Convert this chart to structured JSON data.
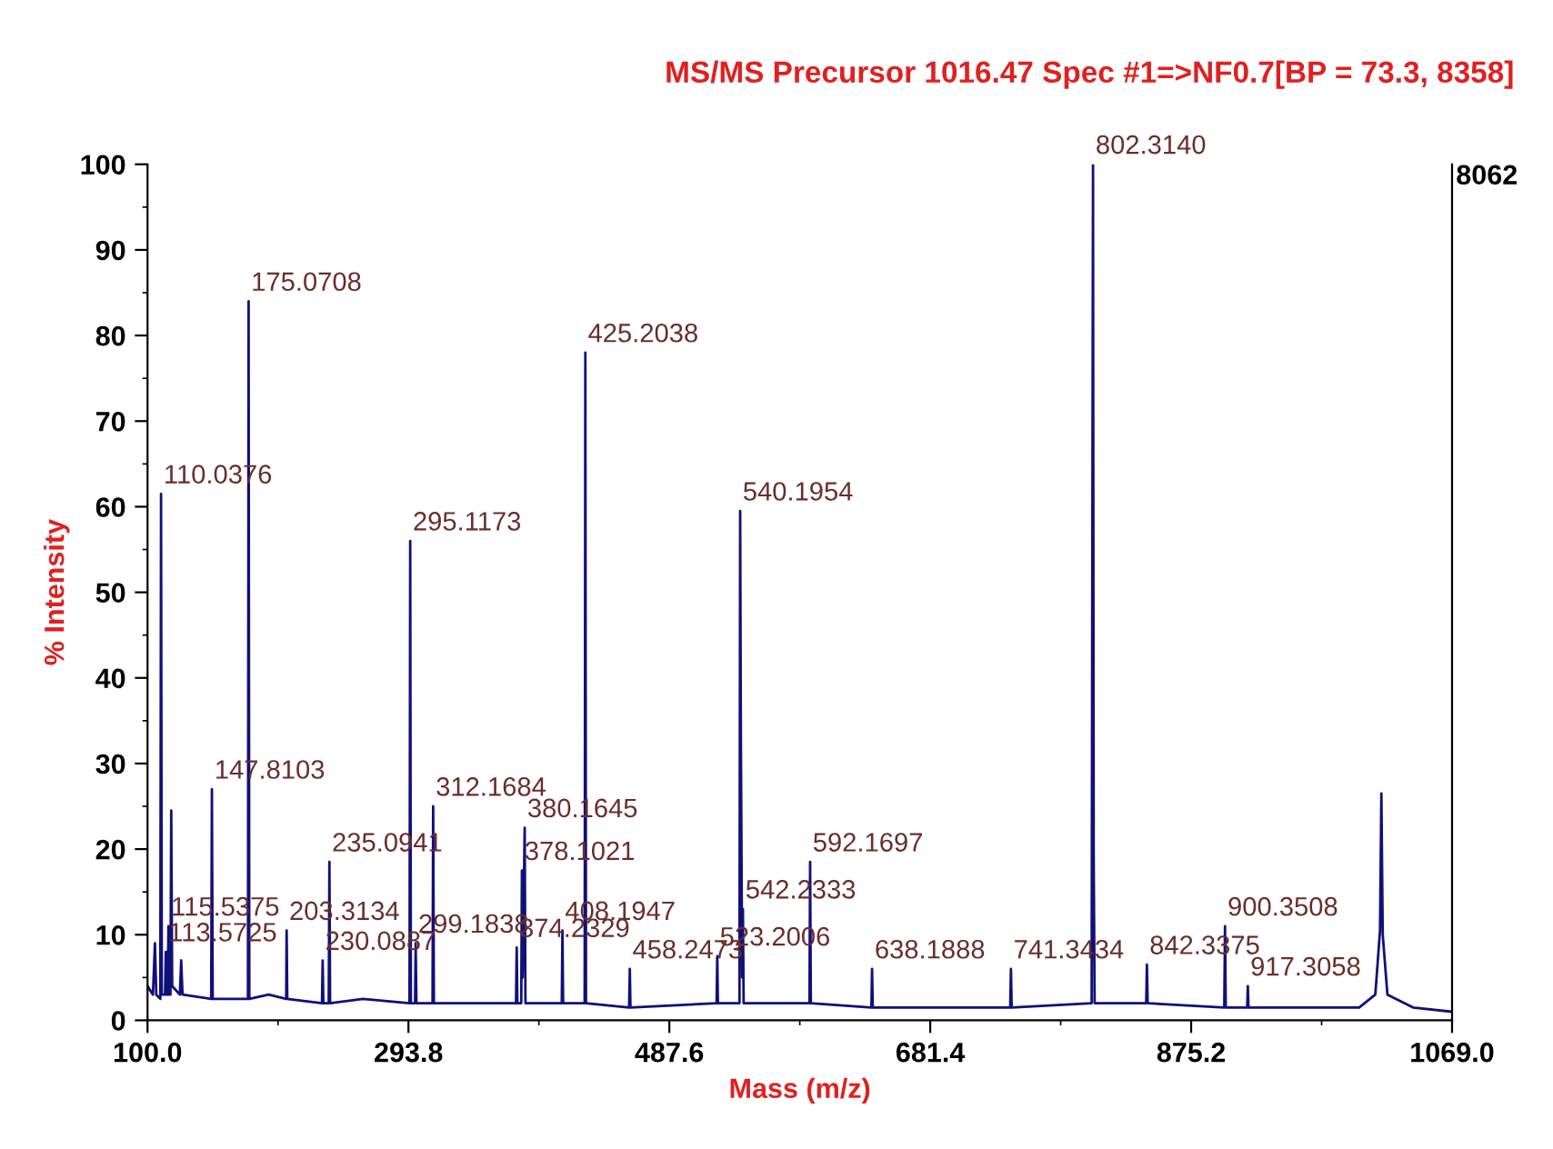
{
  "chart_data": {
    "type": "line",
    "title": "MS/MS Precursor 1016.47 Spec #1=>NF0.7[BP = 73.3, 8358]",
    "xlabel": "Mass (m/z)",
    "ylabel": "% Intensity",
    "x": [
      100,
      104,
      105.5,
      106.5,
      109.5,
      110.0376,
      110.6,
      113.0,
      113.5725,
      114.2,
      115.0,
      115.5375,
      116.2,
      117.0,
      117.6,
      118.3,
      124,
      125,
      126,
      147.3,
      147.8103,
      148.4,
      174.6,
      175.0708,
      175.6,
      190,
      203.0,
      203.3134,
      203.8,
      229.6,
      230.0887,
      230.6,
      234.6,
      235.0941,
      235.6,
      260,
      294.6,
      295.1173,
      295.6,
      298.7,
      299.1838,
      299.7,
      311.7,
      312.1684,
      312.7,
      340,
      373.7,
      374.2329,
      374.7,
      377.6,
      378.1021,
      378.6,
      380.1645,
      380.7,
      407.7,
      408.1947,
      408.7,
      424.7,
      425.2038,
      425.7,
      457.7,
      458.2473,
      458.7,
      522.7,
      523.2006,
      523.7,
      539.7,
      540.1954,
      540.7,
      541.7,
      542.2333,
      542.8,
      591.7,
      592.1697,
      592.7,
      637.7,
      638.1888,
      638.7,
      700,
      740.8,
      741.3434,
      741.9,
      801.3,
      801.8,
      802.314,
      802.8,
      803.5,
      841.8,
      842.3375,
      842.9,
      899.8,
      900.3508,
      900.9,
      916.8,
      917.3058,
      917.8,
      1000,
      1012,
      1015.5,
      1016.5,
      1017.5,
      1021,
      1040,
      1069
    ],
    "series": [
      {
        "color": "#10107a",
        "values": [
          4,
          3,
          9,
          3,
          2.5,
          61.5,
          3,
          3,
          8,
          3,
          3,
          11,
          3,
          3,
          24.5,
          4,
          3,
          7,
          3,
          2.5,
          27,
          2.5,
          2.5,
          84,
          2.5,
          3,
          2.5,
          10.5,
          2.5,
          2,
          7,
          2,
          2,
          18.5,
          2,
          2.5,
          2,
          56,
          2,
          2,
          9,
          2,
          2,
          25,
          2,
          2,
          2,
          8.5,
          2,
          2,
          17.5,
          5,
          22.5,
          2,
          2,
          10.5,
          2,
          2,
          78,
          2,
          1.5,
          6,
          1.5,
          2,
          7.5,
          2,
          2,
          59.5,
          34,
          5,
          13,
          2,
          2,
          18.5,
          2,
          1.5,
          6,
          1.5,
          1.5,
          1.5,
          6,
          1.5,
          2,
          55,
          100,
          19,
          2,
          2,
          6.5,
          2,
          1.5,
          11,
          1.5,
          1.5,
          4,
          1.5,
          1.5,
          3,
          10.5,
          26.5,
          10,
          3,
          1.5,
          1
        ]
      }
    ],
    "xlim": [
      100,
      1069
    ],
    "xticks": [
      {
        "value": 100,
        "label": "100.0"
      },
      {
        "value": 293.8,
        "label": "293.8"
      },
      {
        "value": 487.6,
        "label": "487.6"
      },
      {
        "value": 681.4,
        "label": "681.4"
      },
      {
        "value": 875.2,
        "label": "875.2"
      },
      {
        "value": 1069,
        "label": "1069.0"
      }
    ],
    "ylim": [
      0,
      100
    ],
    "yticks": [
      0,
      10,
      20,
      30,
      40,
      50,
      60,
      70,
      80,
      90,
      100
    ],
    "grid": false,
    "legend": false,
    "marker": "none",
    "line_style": "solid",
    "annotations": [
      {
        "text": "110.0376",
        "x": 110.0376,
        "y": 61.5
      },
      {
        "text": "113.5725",
        "x": 113.5725,
        "y": 8
      },
      {
        "text": "115.5375",
        "x": 115.5375,
        "y": 11
      },
      {
        "text": "147.8103",
        "x": 147.8103,
        "y": 27
      },
      {
        "text": "175.0708",
        "x": 175.0708,
        "y": 84
      },
      {
        "text": "203.3134",
        "x": 203.3134,
        "y": 10.5
      },
      {
        "text": "230.0887",
        "x": 230.0887,
        "y": 7
      },
      {
        "text": "235.0941",
        "x": 235.0941,
        "y": 18.5
      },
      {
        "text": "295.1173",
        "x": 295.1173,
        "y": 56
      },
      {
        "text": "299.1838",
        "x": 299.1838,
        "y": 9
      },
      {
        "text": "312.1684",
        "x": 312.1684,
        "y": 25
      },
      {
        "text": "374.2329",
        "x": 374.2329,
        "y": 8.5
      },
      {
        "text": "378.1021",
        "x": 378.1021,
        "y": 17.5
      },
      {
        "text": "380.1645",
        "x": 380.1645,
        "y": 22.5
      },
      {
        "text": "408.1947",
        "x": 408.1947,
        "y": 10.5
      },
      {
        "text": "425.2038",
        "x": 425.2038,
        "y": 78
      },
      {
        "text": "458.2473",
        "x": 458.2473,
        "y": 6
      },
      {
        "text": "523.2006",
        "x": 523.2006,
        "y": 7.5
      },
      {
        "text": "540.1954",
        "x": 540.1954,
        "y": 59.5
      },
      {
        "text": "542.2333",
        "x": 542.2333,
        "y": 13
      },
      {
        "text": "592.1697",
        "x": 592.1697,
        "y": 18.5
      },
      {
        "text": "638.1888",
        "x": 638.1888,
        "y": 6
      },
      {
        "text": "741.3434",
        "x": 741.3434,
        "y": 6
      },
      {
        "text": "802.3140",
        "x": 802.314,
        "y": 100
      },
      {
        "text": "842.3375",
        "x": 842.3375,
        "y": 6.5
      },
      {
        "text": "900.3508",
        "x": 900.3508,
        "y": 11
      },
      {
        "text": "917.3058",
        "x": 917.3058,
        "y": 4
      },
      "8062"
    ]
  }
}
